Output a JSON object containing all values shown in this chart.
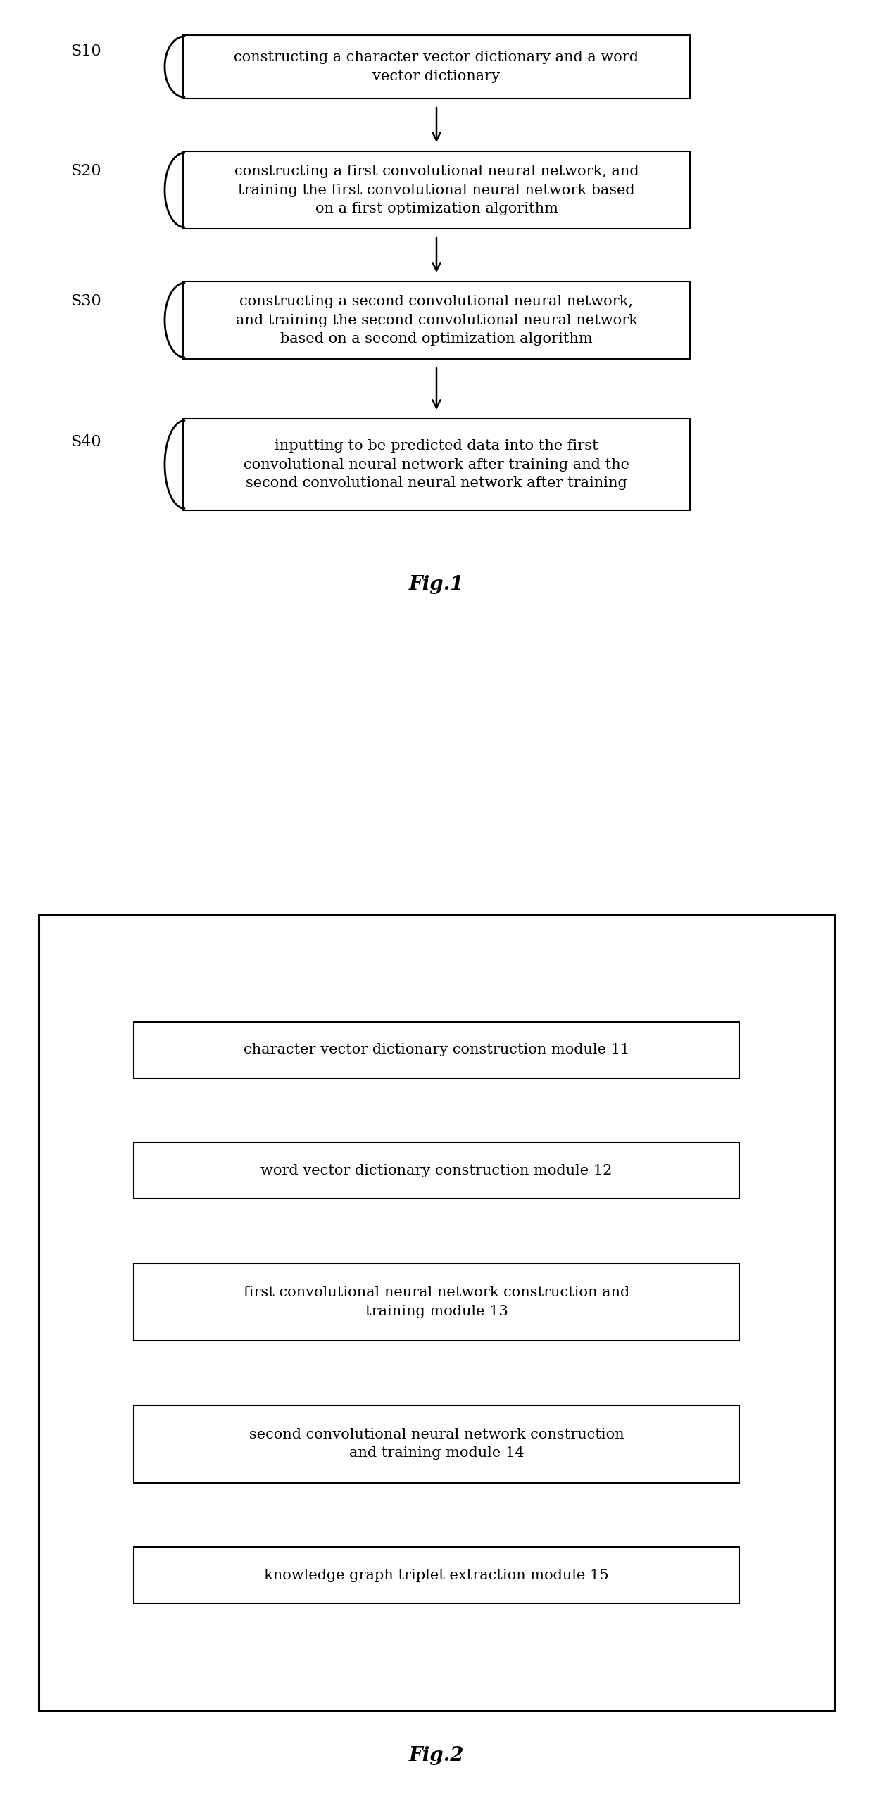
{
  "fig1_title": "Fig.1",
  "fig2_title": "Fig.2",
  "fig1_boxes": [
    {
      "label": "constructing a character vector dictionary and a word\nvector dictionary",
      "step": "S10"
    },
    {
      "label": "constructing a first convolutional neural network, and\ntraining the first convolutional neural network based\non a first optimization algorithm",
      "step": "S20"
    },
    {
      "label": "constructing a second convolutional neural network,\nand training the second convolutional neural network\nbased on a second optimization algorithm",
      "step": "S30"
    },
    {
      "label": "inputting to-be-predicted data into the first\nconvolutional neural network after training and the\nsecond convolutional neural network after training",
      "step": "S40"
    }
  ],
  "fig2_boxes": [
    {
      "label": "character vector dictionary construction module 11"
    },
    {
      "label": "word vector dictionary construction module 12"
    },
    {
      "label": "first convolutional neural network construction and\ntraining module 13"
    },
    {
      "label": "second convolutional neural network construction\nand training module 14"
    },
    {
      "label": "knowledge graph triplet extraction module 15"
    }
  ],
  "box_color": "#ffffff",
  "box_edge_color": "#000000",
  "text_color": "#000000",
  "background_color": "#ffffff",
  "arrow_color": "#000000"
}
